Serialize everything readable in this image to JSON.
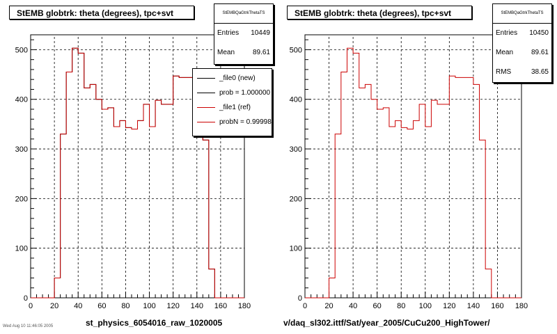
{
  "chart_data": [
    {
      "type": "step-histogram",
      "title": "StEMB globtrk: theta (degrees), tpc+svt",
      "xlabel": "st_physics_6054016_raw_1020005",
      "ylabel": "",
      "xlim": [
        0,
        180
      ],
      "ylim": [
        0,
        530
      ],
      "xticks": [
        "0",
        "20",
        "40",
        "60",
        "80",
        "100",
        "120",
        "140",
        "160",
        "180"
      ],
      "yticks": [
        "0",
        "100",
        "200",
        "300",
        "400",
        "500"
      ],
      "grid": true,
      "bin_edges": [
        0,
        5,
        10,
        15,
        20,
        25,
        30,
        35,
        40,
        45,
        50,
        55,
        60,
        65,
        70,
        75,
        80,
        85,
        90,
        95,
        100,
        105,
        110,
        115,
        120,
        125,
        130,
        135,
        140,
        145,
        150,
        155,
        160,
        165,
        170,
        175,
        180
      ],
      "series": [
        {
          "name": "_file0 (new)",
          "color": "#000000",
          "values": [
            0,
            0,
            0,
            0,
            40,
            330,
            455,
            503,
            493,
            423,
            430,
            400,
            380,
            383,
            345,
            357,
            343,
            340,
            357,
            390,
            345,
            398,
            390,
            390,
            447,
            444,
            444,
            444,
            430,
            318,
            58,
            0,
            0,
            0,
            0,
            0
          ]
        },
        {
          "name": "_file1 (ref)",
          "color": "#cc0000",
          "values": [
            0,
            0,
            0,
            0,
            40,
            330,
            455,
            503,
            493,
            423,
            430,
            400,
            380,
            383,
            345,
            357,
            343,
            340,
            357,
            390,
            345,
            398,
            390,
            390,
            447,
            444,
            444,
            444,
            430,
            318,
            58,
            0,
            0,
            0,
            0,
            0
          ]
        }
      ],
      "stats": {
        "name": "StEMBQaGtrkThetaTS",
        "entries_label": "Entries",
        "entries": "10449",
        "mean_label": "Mean",
        "mean": "89.61"
      },
      "legend": {
        "placement": "top-right",
        "entries": [
          {
            "label": "_file0 (new)",
            "color": "#000000"
          },
          {
            "label": "prob = 1.000000",
            "color": "#000000"
          },
          {
            "label": "_file1 (ref)",
            "color": "#cc0000"
          },
          {
            "label": "probN = 0.99998",
            "color": "#cc0000"
          }
        ]
      }
    },
    {
      "type": "step-histogram",
      "title": "StEMB globtrk: theta (degrees), tpc+svt",
      "xlabel": "v/daq_sl302.ittf/Sat/year_2005/CuCu200_HighTower/",
      "ylabel": "",
      "xlim": [
        0,
        180
      ],
      "ylim": [
        0,
        530
      ],
      "xticks": [
        "0",
        "20",
        "40",
        "60",
        "80",
        "100",
        "120",
        "140",
        "160",
        "180"
      ],
      "yticks": [
        "0",
        "100",
        "200",
        "300",
        "400",
        "500"
      ],
      "grid": true,
      "bin_edges": [
        0,
        5,
        10,
        15,
        20,
        25,
        30,
        35,
        40,
        45,
        50,
        55,
        60,
        65,
        70,
        75,
        80,
        85,
        90,
        95,
        100,
        105,
        110,
        115,
        120,
        125,
        130,
        135,
        140,
        145,
        150,
        155,
        160,
        165,
        170,
        175,
        180
      ],
      "series": [
        {
          "color": "#cc0000",
          "values": [
            0,
            0,
            0,
            0,
            40,
            330,
            455,
            503,
            493,
            423,
            430,
            400,
            380,
            383,
            345,
            357,
            343,
            340,
            357,
            390,
            345,
            398,
            390,
            390,
            447,
            444,
            444,
            444,
            430,
            318,
            58,
            0,
            0,
            0,
            0,
            0
          ]
        }
      ],
      "stats": {
        "name": "StEMBQaGtrkThetaTS",
        "entries_label": "Entries",
        "entries": "10450",
        "mean_label": "Mean",
        "mean": "89.61",
        "rms_label": "RMS",
        "rms": "38.65"
      }
    }
  ],
  "footer": "Wed Aug 10 11:46:05 2005"
}
